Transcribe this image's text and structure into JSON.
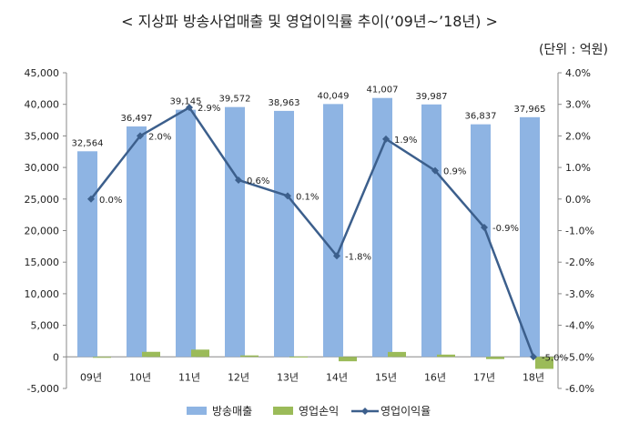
{
  "title": "< 지상파 방송사업매출 및 영업이익률 추이(’09년~’18년) >",
  "unit": "(단위 : 억원)",
  "chart_data": {
    "type": "bar",
    "categories": [
      "09년",
      "10년",
      "11년",
      "12년",
      "13년",
      "14년",
      "15년",
      "16년",
      "17년",
      "18년"
    ],
    "series": [
      {
        "name": "방송매출",
        "type": "bar",
        "axis": "left",
        "color": "#8EB4E3",
        "values": [
          32564,
          36497,
          39145,
          39572,
          38963,
          40049,
          41007,
          39987,
          36837,
          37965
        ],
        "labels": [
          "32,564",
          "36,497",
          "39,145",
          "39,572",
          "38,963",
          "40,049",
          "41,007",
          "39,987",
          "36,837",
          "37,965"
        ]
      },
      {
        "name": "영업손익",
        "type": "bar",
        "axis": "left",
        "color": "#9BBB59",
        "values": [
          0,
          800,
          1150,
          230,
          40,
          -700,
          780,
          360,
          -350,
          -1900
        ]
      },
      {
        "name": "영업이익율",
        "type": "line",
        "axis": "right",
        "color": "#3C5F8C",
        "values": [
          0.0,
          2.0,
          2.9,
          0.6,
          0.1,
          -1.8,
          1.9,
          0.9,
          -0.9,
          -5.0
        ],
        "labels": [
          "0.0%",
          "2.0%",
          "2.9%",
          "0.6%",
          "0.1%",
          "-1.8%",
          "1.9%",
          "0.9%",
          "-0.9%",
          "-5.0%"
        ]
      }
    ],
    "left_axis": {
      "min": -5000,
      "max": 45000,
      "step": 5000,
      "tick_labels": [
        "-5,000",
        "0",
        "5,000",
        "10,000",
        "15,000",
        "20,000",
        "25,000",
        "30,000",
        "35,000",
        "40,000",
        "45,000"
      ]
    },
    "right_axis": {
      "min": -6.0,
      "max": 4.0,
      "step": 1.0,
      "tick_labels": [
        "-6.0%",
        "-5.0%",
        "-4.0%",
        "-3.0%",
        "-2.0%",
        "-1.0%",
        "0.0%",
        "1.0%",
        "2.0%",
        "3.0%",
        "4.0%"
      ]
    },
    "legend_position": "bottom",
    "grid": false
  }
}
